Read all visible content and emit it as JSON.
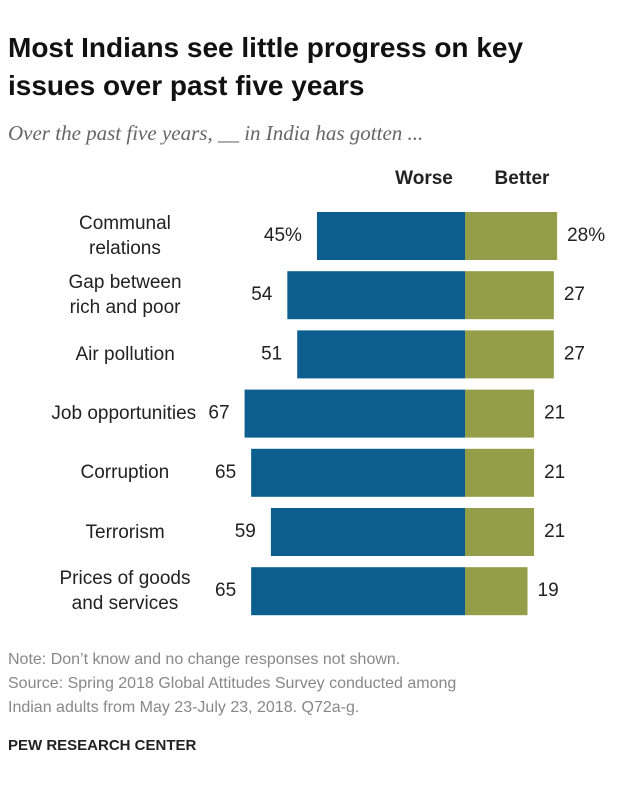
{
  "chart_data": {
    "type": "diverging_bar",
    "title": "Most Indians see little progress on key issues over past five years",
    "subtitle": "Over the past five years, __ in India has gotten ...",
    "categories": [
      "Communal\nrelations",
      "Gap between\nrich and poor",
      "Air pollution",
      "Job opportunities",
      "Corruption",
      "Terrorism",
      "Prices of goods\nand services"
    ],
    "series": [
      {
        "name": "Worse",
        "color": "#0b5e8e",
        "values": [
          45,
          54,
          51,
          67,
          65,
          59,
          65
        ],
        "value_labels": [
          "45%",
          "54",
          "51",
          "67",
          "65",
          "59",
          "65"
        ]
      },
      {
        "name": "Better",
        "color": "#949d48",
        "values": [
          28,
          27,
          27,
          21,
          21,
          21,
          19
        ],
        "value_labels": [
          "28%",
          "27",
          "27",
          "21",
          "21",
          "21",
          "19"
        ]
      }
    ],
    "notes": [
      "Note: Don’t know and no change responses not shown.",
      "Source: Spring 2018 Global Attitudes Survey conducted among",
      "Indian adults from May 23-July 23, 2018. Q72a-g."
    ],
    "source": "PEW RESEARCH CENTER"
  }
}
